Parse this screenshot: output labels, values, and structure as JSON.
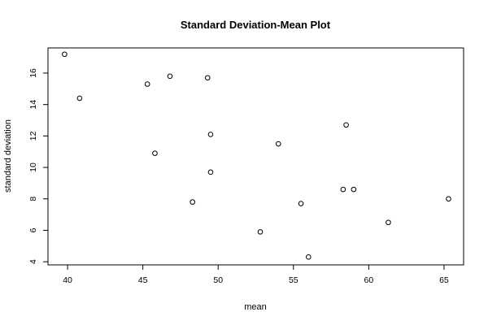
{
  "chart_data": {
    "type": "scatter",
    "title": "Standard Deviation-Mean Plot",
    "xlabel": "mean",
    "ylabel": "standard deviation",
    "xlim": [
      38.7,
      66.3
    ],
    "ylim": [
      3.8,
      17.6
    ],
    "xticks": [
      40,
      45,
      50,
      55,
      60,
      65
    ],
    "yticks": [
      4,
      6,
      8,
      10,
      12,
      14,
      16
    ],
    "grid": false,
    "legend": "none",
    "points": [
      {
        "x": 39.8,
        "y": 17.2
      },
      {
        "x": 40.8,
        "y": 14.4
      },
      {
        "x": 45.3,
        "y": 15.3
      },
      {
        "x": 46.8,
        "y": 15.8
      },
      {
        "x": 49.3,
        "y": 15.7
      },
      {
        "x": 49.5,
        "y": 12.1
      },
      {
        "x": 45.8,
        "y": 10.9
      },
      {
        "x": 49.5,
        "y": 9.7
      },
      {
        "x": 48.3,
        "y": 7.8
      },
      {
        "x": 52.8,
        "y": 5.9
      },
      {
        "x": 54.0,
        "y": 11.5
      },
      {
        "x": 55.5,
        "y": 7.7
      },
      {
        "x": 56.0,
        "y": 4.3
      },
      {
        "x": 58.3,
        "y": 8.6
      },
      {
        "x": 58.5,
        "y": 12.7
      },
      {
        "x": 59.0,
        "y": 8.6
      },
      {
        "x": 61.3,
        "y": 6.5
      },
      {
        "x": 65.3,
        "y": 8.0
      }
    ]
  }
}
